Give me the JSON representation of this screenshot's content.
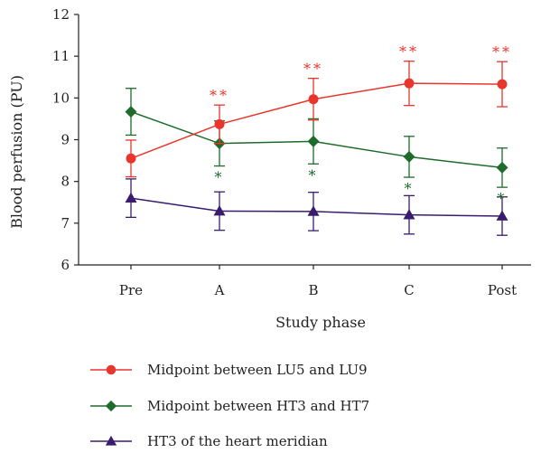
{
  "chart_data": {
    "type": "line",
    "title": "",
    "xlabel": "Study phase",
    "ylabel": "Blood perfusion (PU)",
    "categories": [
      "Pre",
      "A",
      "B",
      "C",
      "Post"
    ],
    "ylim": [
      6,
      12
    ],
    "yticks": [
      6,
      7,
      8,
      9,
      10,
      11,
      12
    ],
    "grid": false,
    "legend_position": "bottom-left",
    "series": [
      {
        "name": "Midpoint between LU5 and LU9",
        "color": "#e8362d",
        "marker": "circle",
        "values": [
          8.55,
          9.37,
          9.97,
          10.35,
          10.33
        ],
        "error": [
          0.44,
          0.46,
          0.5,
          0.53,
          0.54
        ],
        "annotations": [
          "",
          "**",
          "**",
          "**",
          "**"
        ],
        "annotation_side": "above"
      },
      {
        "name": "Midpoint between HT3 and HT7",
        "color": "#1e6b2b",
        "marker": "diamond",
        "values": [
          9.67,
          8.91,
          8.96,
          8.59,
          8.33
        ],
        "error": [
          0.56,
          0.54,
          0.54,
          0.49,
          0.47
        ],
        "annotations": [
          "",
          "*",
          "*",
          "*",
          "*"
        ],
        "annotation_side": "below"
      },
      {
        "name": "HT3 of the heart meridian",
        "color": "#3a1c6e",
        "marker": "triangle",
        "values": [
          7.6,
          7.29,
          7.28,
          7.2,
          7.17
        ],
        "error": [
          0.46,
          0.46,
          0.46,
          0.46,
          0.46
        ],
        "annotations": [
          "",
          "",
          "",
          "",
          ""
        ],
        "annotation_side": "below"
      }
    ]
  }
}
